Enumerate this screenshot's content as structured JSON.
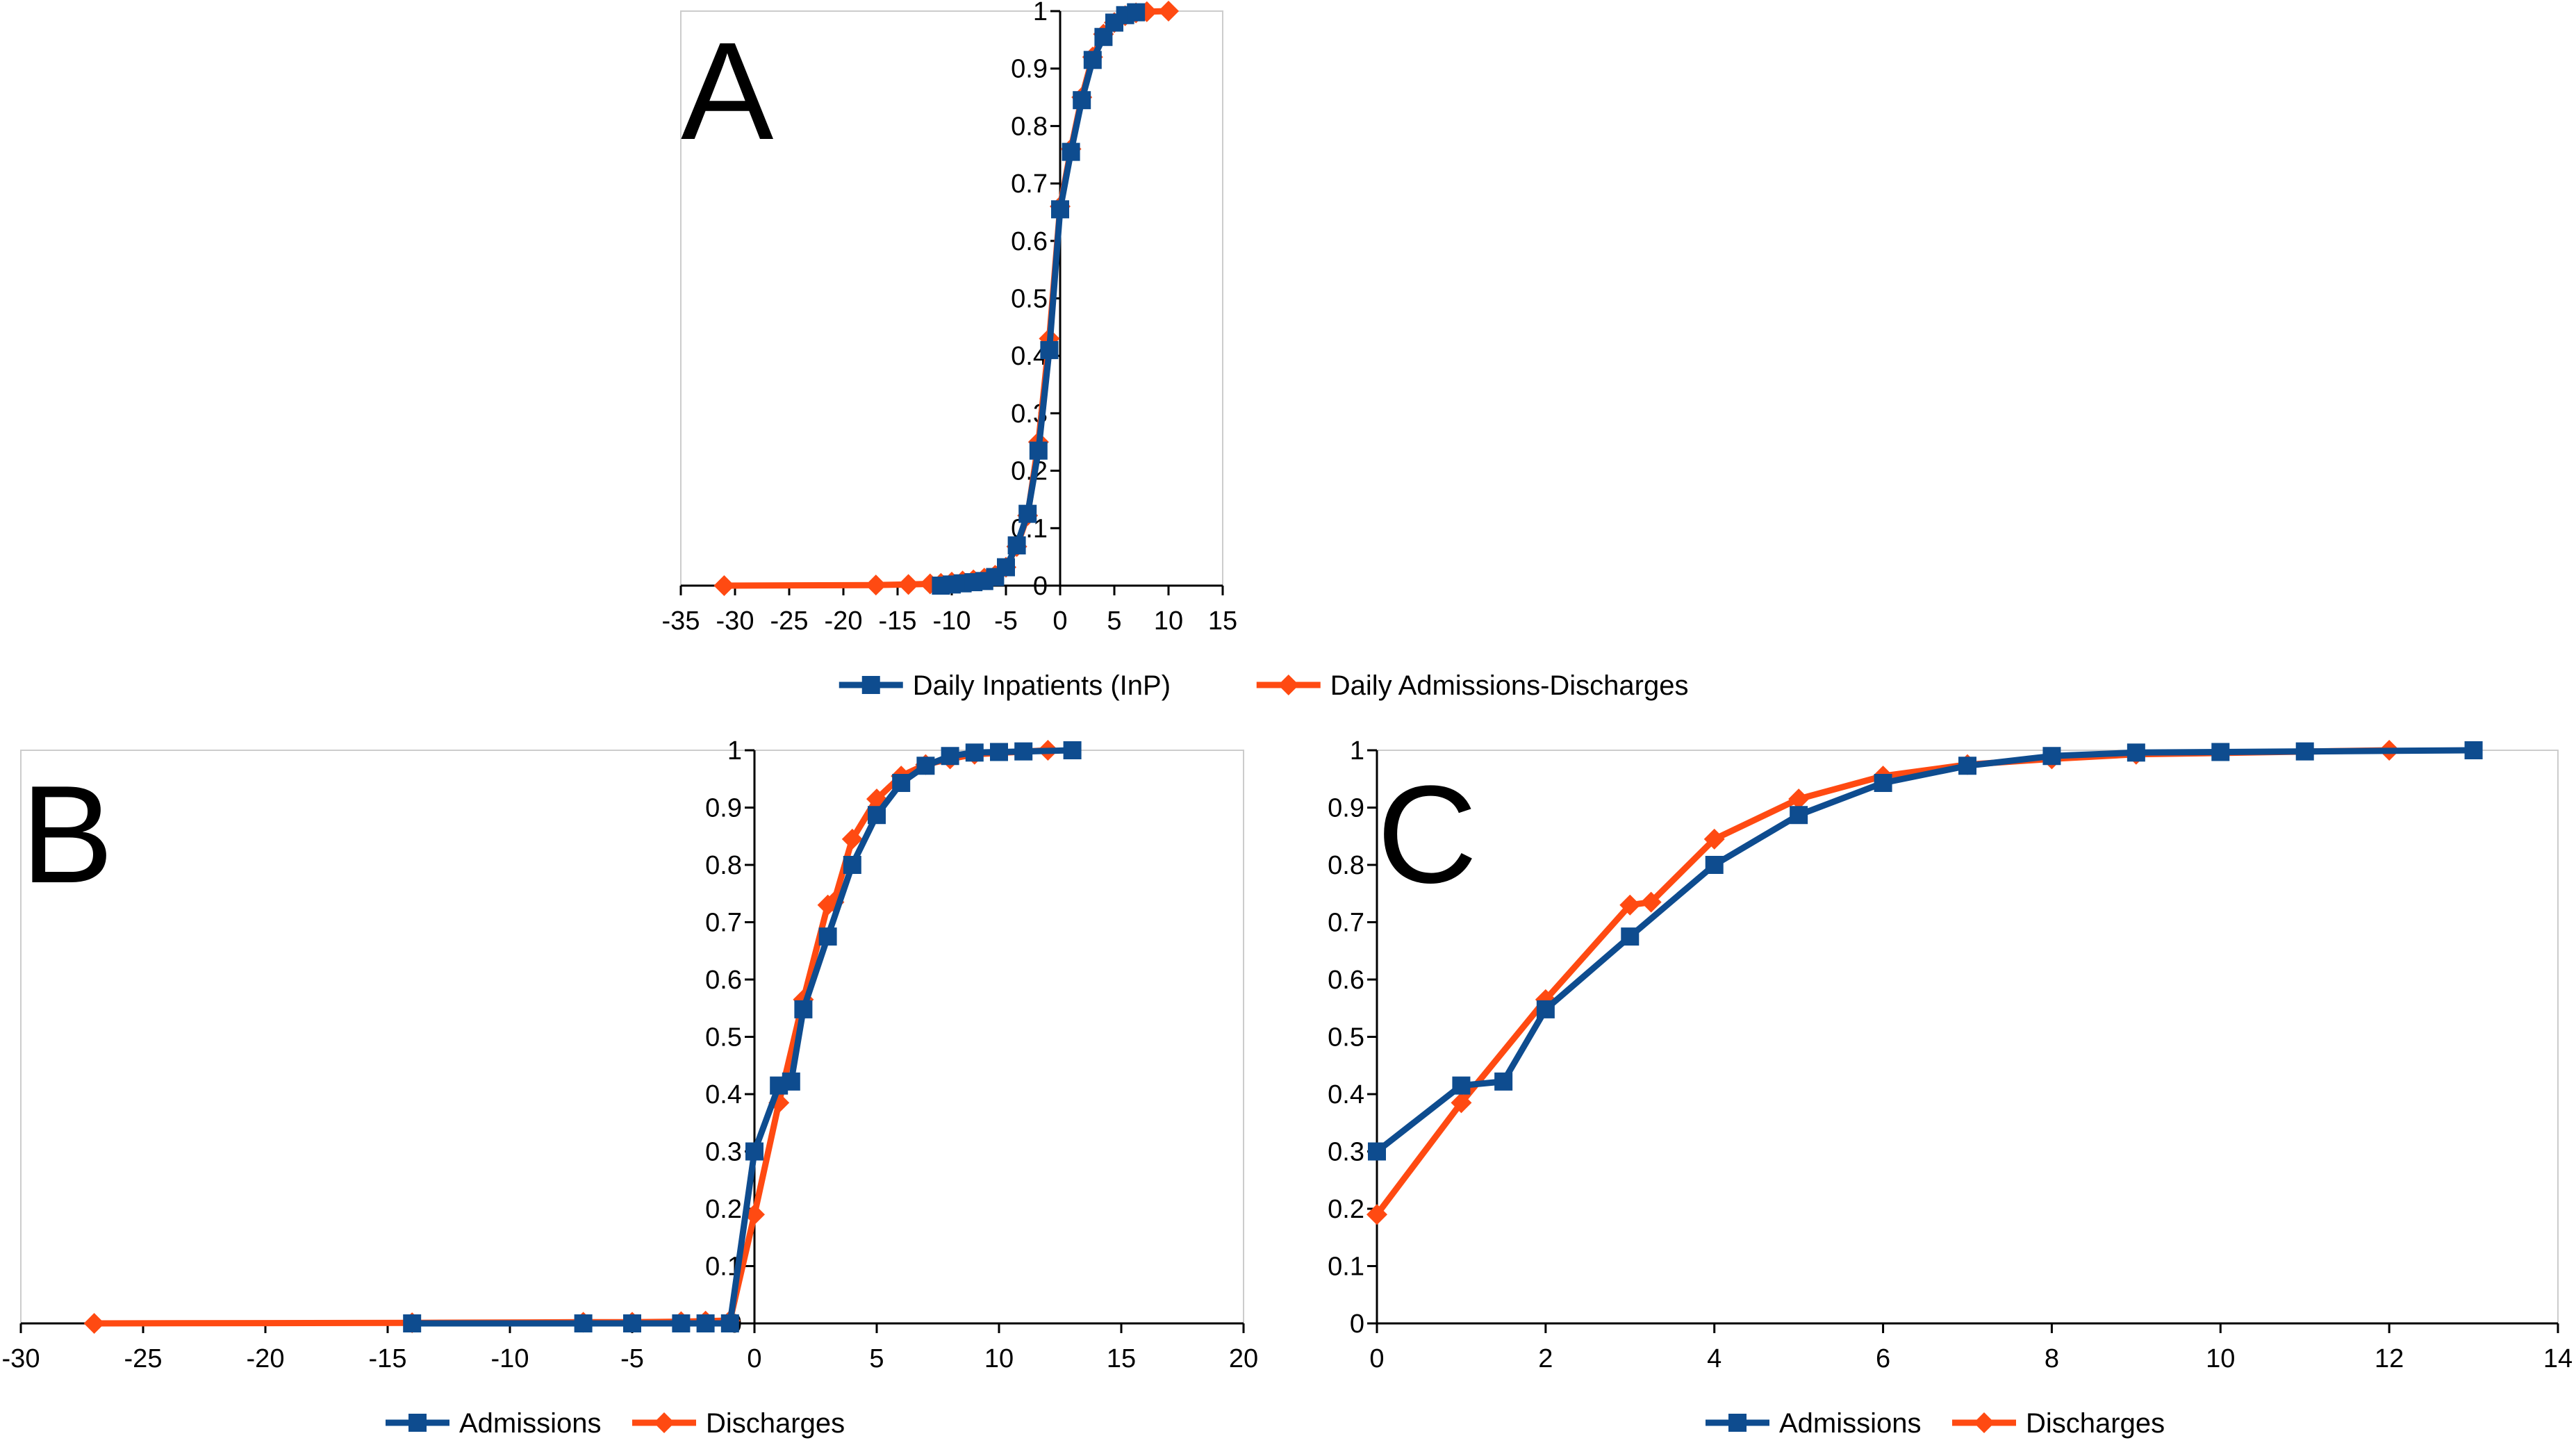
{
  "colors": {
    "inpatients": "#0e4c8f",
    "admissions_discharges": "#ff4a12",
    "axis": "#000000",
    "frame": "#cccccc"
  },
  "chart_data": [
    {
      "id": "A",
      "panel_label": "A",
      "type": "line",
      "title": "",
      "xlabel": "",
      "ylabel": "",
      "xlim": [
        -35,
        15
      ],
      "ylim": [
        0,
        1
      ],
      "x_ticks": [
        -35,
        -30,
        -25,
        -20,
        -15,
        -10,
        -5,
        0,
        5,
        10,
        15
      ],
      "x_tick_labels": [
        "-35",
        "-30",
        "-25",
        "-20",
        "-15",
        "-10",
        "-5",
        "0",
        "5",
        "10",
        "15"
      ],
      "y_ticks": [
        0,
        0.1,
        0.2,
        0.3,
        0.4,
        0.5,
        0.6,
        0.7,
        0.8,
        0.9,
        1
      ],
      "y_tick_labels": [
        "0",
        "0.1",
        "0.2",
        "0.3",
        "0.4",
        "0.5",
        "0.6",
        "0.7",
        "0.8",
        "0.9",
        "1"
      ],
      "legend_position": "bottom",
      "series": [
        {
          "name": "Daily Admissions-Discharges",
          "color_key": "admissions_discharges",
          "marker": "diamond",
          "x": [
            -31,
            -17,
            -14,
            -12,
            -11,
            -10,
            -9,
            -8,
            -7,
            -6,
            -5,
            -4,
            -3,
            -2,
            -1,
            0,
            1,
            2,
            3,
            4,
            5,
            6,
            7,
            8,
            10
          ],
          "y": [
            0,
            0.001,
            0.002,
            0.003,
            0.004,
            0.006,
            0.008,
            0.01,
            0.013,
            0.018,
            0.032,
            0.068,
            0.122,
            0.25,
            0.43,
            0.66,
            0.76,
            0.85,
            0.92,
            0.96,
            0.98,
            0.992,
            0.997,
            0.999,
            1.0
          ]
        },
        {
          "name": "Daily Inpatients (InP)",
          "color_key": "inpatients",
          "marker": "square",
          "x": [
            -11,
            -10,
            -9,
            -8,
            -7,
            -6,
            -5,
            -4,
            -3,
            -2,
            -1,
            0,
            1,
            2,
            3,
            4,
            5,
            6,
            7
          ],
          "y": [
            0,
            0.002,
            0.004,
            0.006,
            0.008,
            0.015,
            0.032,
            0.07,
            0.125,
            0.235,
            0.41,
            0.655,
            0.755,
            0.845,
            0.915,
            0.955,
            0.98,
            0.993,
            0.998
          ]
        }
      ],
      "legend": [
        "Daily Inpatients (InP)",
        "Daily Admissions-Discharges"
      ]
    },
    {
      "id": "B",
      "panel_label": "B",
      "type": "line",
      "title": "",
      "xlabel": "",
      "ylabel": "",
      "xlim": [
        -30,
        20
      ],
      "ylim": [
        0,
        1
      ],
      "x_ticks": [
        -30,
        -25,
        -20,
        -15,
        -10,
        -5,
        0,
        5,
        10,
        15,
        20
      ],
      "x_tick_labels": [
        "-30",
        "-25",
        "-20",
        "-15",
        "-10",
        "-5",
        "0",
        "5",
        "10",
        "15",
        "20"
      ],
      "y_ticks": [
        0,
        0.1,
        0.2,
        0.3,
        0.4,
        0.5,
        0.6,
        0.7,
        0.8,
        0.9,
        1
      ],
      "y_tick_labels": [
        "0",
        "0.1",
        "0.2",
        "0.3",
        "0.4",
        "0.5",
        "0.6",
        "0.7",
        "0.8",
        "0.9",
        "1"
      ],
      "legend_position": "bottom",
      "series": [
        {
          "name": "Discharges",
          "color_key": "admissions_discharges",
          "marker": "diamond",
          "x": [
            -27,
            -14,
            -7,
            -5,
            -3,
            -2,
            -1,
            0,
            1,
            2,
            3,
            3.25,
            4,
            5,
            6,
            7,
            8,
            9,
            12
          ],
          "y": [
            0,
            0.001,
            0.002,
            0.002,
            0.003,
            0.004,
            0.005,
            0.19,
            0.385,
            0.565,
            0.73,
            0.735,
            0.845,
            0.915,
            0.955,
            0.975,
            0.985,
            0.993,
            1.0
          ]
        },
        {
          "name": "Admissions",
          "color_key": "inpatients",
          "marker": "square",
          "x": [
            -14,
            -7,
            -5,
            -3,
            -2,
            -1,
            0,
            1,
            1.5,
            2,
            3,
            4,
            5,
            6,
            7,
            8,
            9,
            10,
            11,
            13
          ],
          "y": [
            0,
            0,
            0,
            0,
            0,
            0,
            0.3,
            0.415,
            0.422,
            0.548,
            0.675,
            0.8,
            0.887,
            0.943,
            0.973,
            0.99,
            0.996,
            0.997,
            0.998,
            1.0
          ]
        }
      ],
      "legend": [
        "Admissions",
        "Discharges"
      ]
    },
    {
      "id": "C",
      "panel_label": "C",
      "type": "line",
      "title": "",
      "xlabel": "",
      "ylabel": "",
      "xlim": [
        0,
        14
      ],
      "ylim": [
        0,
        1
      ],
      "x_ticks": [
        0,
        2,
        4,
        6,
        8,
        10,
        12,
        14
      ],
      "x_tick_labels": [
        "0",
        "2",
        "4",
        "6",
        "8",
        "10",
        "12",
        "14"
      ],
      "y_ticks": [
        0,
        0.1,
        0.2,
        0.3,
        0.4,
        0.5,
        0.6,
        0.7,
        0.8,
        0.9,
        1
      ],
      "y_tick_labels": [
        "0",
        "0.1",
        "0.2",
        "0.3",
        "0.4",
        "0.5",
        "0.6",
        "0.7",
        "0.8",
        "0.9",
        "1"
      ],
      "legend_position": "bottom",
      "series": [
        {
          "name": "Discharges",
          "color_key": "admissions_discharges",
          "marker": "diamond",
          "x": [
            0,
            1,
            2,
            3,
            3.25,
            4,
            5,
            6,
            7,
            8,
            9,
            12
          ],
          "y": [
            0.19,
            0.385,
            0.565,
            0.73,
            0.735,
            0.845,
            0.915,
            0.955,
            0.975,
            0.985,
            0.993,
            1.0
          ]
        },
        {
          "name": "Admissions",
          "color_key": "inpatients",
          "marker": "square",
          "x": [
            0,
            1,
            1.5,
            2,
            3,
            4,
            5,
            6,
            7,
            8,
            9,
            10,
            11,
            13
          ],
          "y": [
            0.3,
            0.415,
            0.422,
            0.548,
            0.675,
            0.8,
            0.887,
            0.943,
            0.973,
            0.99,
            0.996,
            0.997,
            0.998,
            1.0
          ]
        }
      ],
      "legend": [
        "Admissions",
        "Discharges"
      ]
    }
  ]
}
